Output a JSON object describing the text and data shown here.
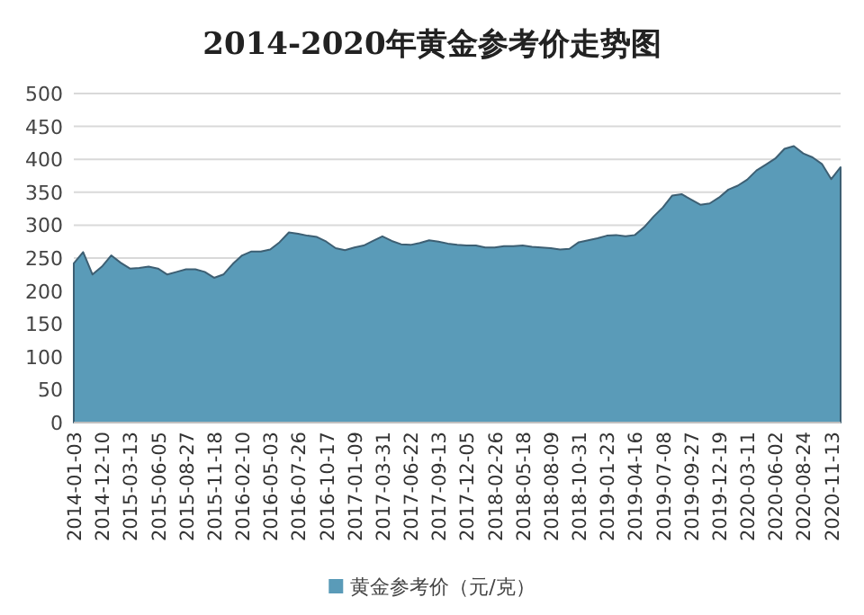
{
  "chart_data": {
    "type": "area",
    "title": "2014-2020年黄金参考价走势图",
    "categories": [
      "2014-01-03",
      null,
      null,
      "2014-12-10",
      null,
      null,
      "2015-03-13",
      null,
      null,
      "2015-06-05",
      null,
      null,
      "2015-08-27",
      null,
      null,
      "2015-11-18",
      null,
      null,
      "2016-02-10",
      null,
      null,
      "2016-05-03",
      null,
      null,
      "2016-07-26",
      null,
      null,
      "2016-10-17",
      null,
      null,
      "2017-01-09",
      null,
      null,
      "2017-03-31",
      null,
      null,
      "2017-06-22",
      null,
      null,
      "2017-09-13",
      null,
      null,
      "2017-12-05",
      null,
      null,
      "2018-02-26",
      null,
      null,
      "2018-05-18",
      null,
      null,
      "2018-08-09",
      null,
      null,
      "2018-10-31",
      null,
      null,
      "2019-01-23",
      null,
      null,
      "2019-04-16",
      null,
      null,
      "2019-07-08",
      null,
      null,
      "2019-09-27",
      null,
      null,
      "2019-12-19",
      null,
      null,
      "2020-03-11",
      null,
      null,
      "2020-06-02",
      null,
      null,
      "2020-08-24",
      null,
      null,
      "2020-11-13",
      null
    ],
    "series": [
      {
        "name": "黄金参考价（元/克）",
        "color": "#5a9bb8",
        "values": [
          242,
          259,
          225,
          237,
          254,
          243,
          234,
          235,
          237,
          234,
          225,
          229,
          233,
          233,
          229,
          220,
          225,
          241,
          254,
          260,
          260,
          263,
          274,
          289,
          287,
          284,
          282,
          275,
          265,
          262,
          266,
          269,
          276,
          283,
          276,
          271,
          270,
          273,
          277,
          275,
          272,
          270,
          269,
          269,
          266,
          266,
          268,
          268,
          269,
          267,
          266,
          265,
          263,
          264,
          274,
          277,
          280,
          284,
          285,
          283,
          285,
          297,
          313,
          327,
          345,
          347,
          339,
          331,
          333,
          342,
          354,
          360,
          369,
          383,
          392,
          401,
          416,
          420,
          409,
          403,
          393,
          370,
          388
        ]
      }
    ],
    "ylim": [
      0,
      500
    ],
    "yticks": [
      0,
      50,
      100,
      150,
      200,
      250,
      300,
      350,
      400,
      450,
      500
    ],
    "grid": "y",
    "legend": "bottom"
  }
}
